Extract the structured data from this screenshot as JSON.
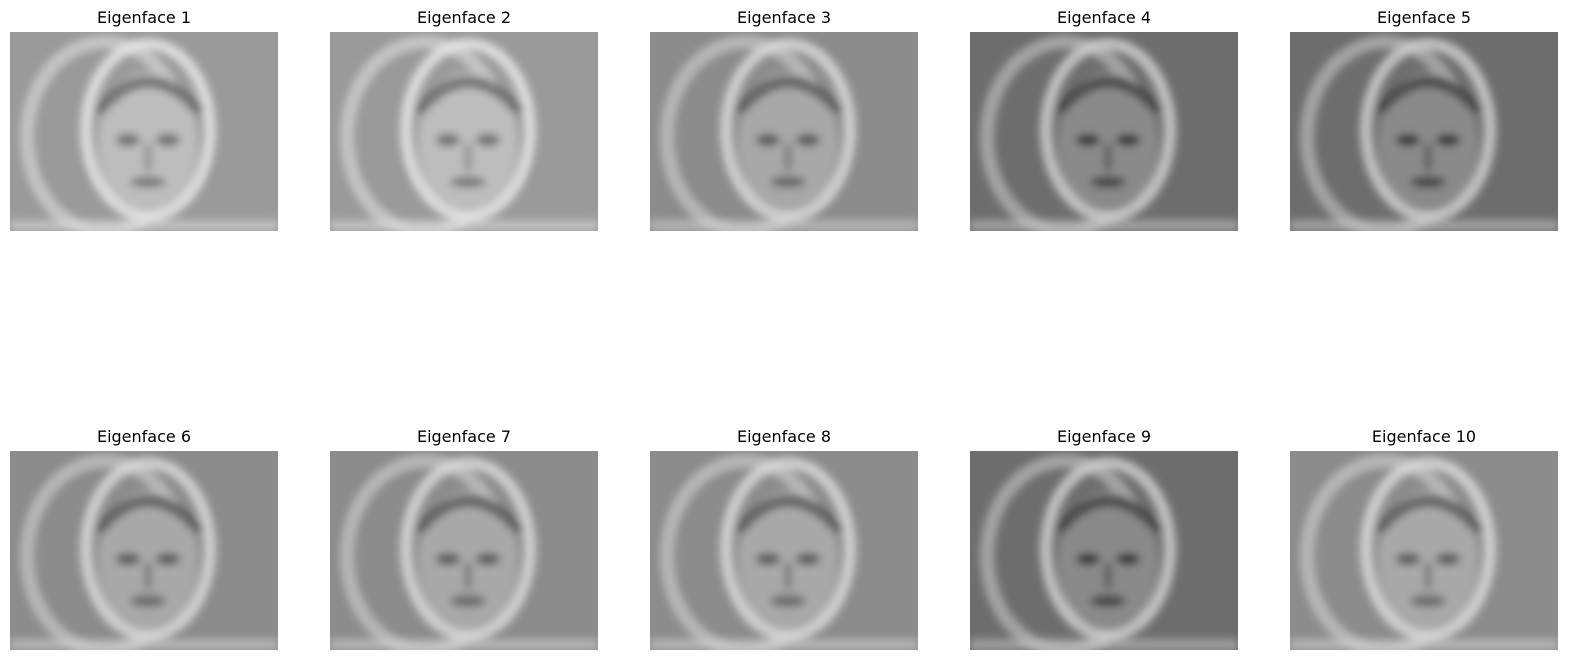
{
  "figure": {
    "panels": [
      {
        "title": "Eigenface 1",
        "image": "eigenface-image",
        "tone": "light"
      },
      {
        "title": "Eigenface 2",
        "image": "eigenface-image",
        "tone": "light"
      },
      {
        "title": "Eigenface 3",
        "image": "eigenface-image",
        "tone": "mid"
      },
      {
        "title": "Eigenface 4",
        "image": "eigenface-image",
        "tone": "dark"
      },
      {
        "title": "Eigenface 5",
        "image": "eigenface-image",
        "tone": "dark"
      },
      {
        "title": "Eigenface 6",
        "image": "eigenface-image",
        "tone": "mid"
      },
      {
        "title": "Eigenface 7",
        "image": "eigenface-image",
        "tone": "mid"
      },
      {
        "title": "Eigenface 8",
        "image": "eigenface-image",
        "tone": "mid"
      },
      {
        "title": "Eigenface 9",
        "image": "eigenface-image",
        "tone": "dark"
      },
      {
        "title": "Eigenface 10",
        "image": "eigenface-image",
        "tone": "mid"
      }
    ]
  }
}
